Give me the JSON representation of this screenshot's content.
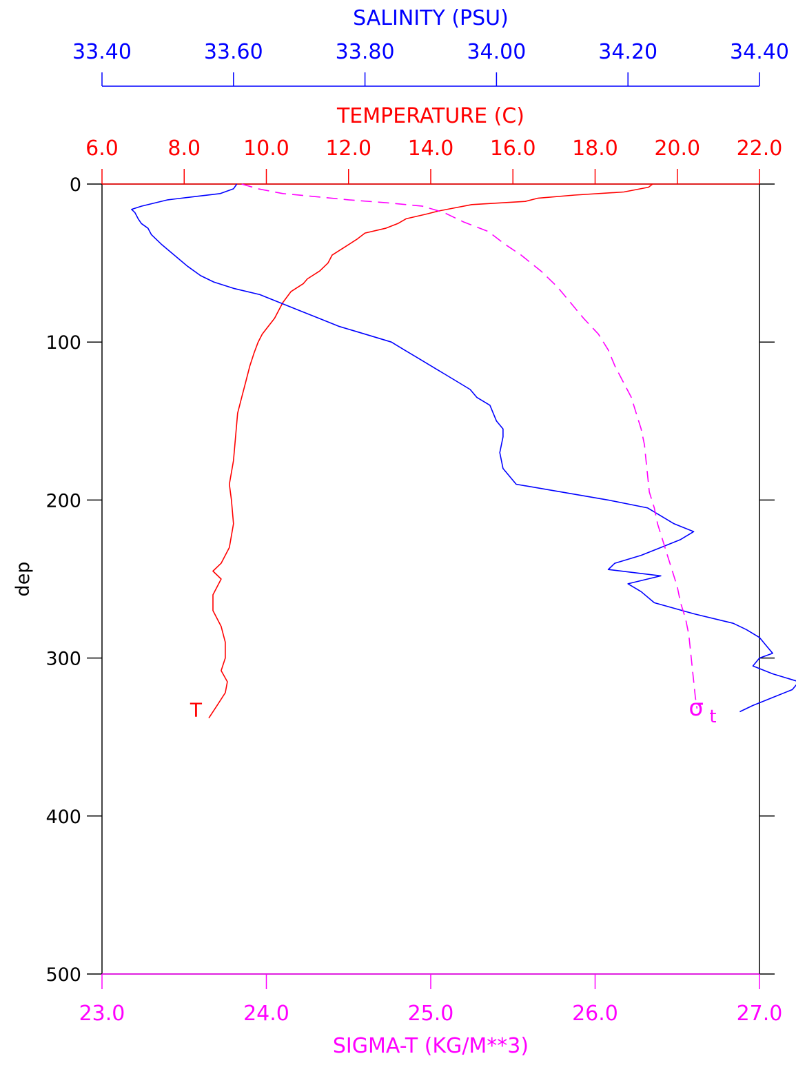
{
  "chart_data": {
    "type": "line",
    "colors": {
      "salinity": "#0000ff",
      "temperature": "#ff0000",
      "sigma_t": "#ff00ff",
      "frame": "#000000"
    },
    "y_axis": {
      "label": "dep",
      "range": [
        0,
        500
      ],
      "ticks": [
        "0",
        "100",
        "200",
        "300",
        "400",
        "500"
      ],
      "inverted": true
    },
    "salinity_axis": {
      "title": "SALINITY (PSU)",
      "range": [
        33.4,
        34.4
      ],
      "ticks": [
        "33.40",
        "33.60",
        "33.80",
        "34.00",
        "34.20",
        "34.40"
      ],
      "placement": "top"
    },
    "temperature_axis": {
      "title": "TEMPERATURE (C)",
      "range": [
        6,
        22
      ],
      "ticks": [
        "6.0",
        "8.0",
        "10.0",
        "12.0",
        "14.0",
        "16.0",
        "18.0",
        "20.0",
        "22.0"
      ],
      "placement": "top"
    },
    "sigma_axis": {
      "title": "SIGMA-T (KG/M**3)",
      "range": [
        23,
        27
      ],
      "ticks": [
        "23.0",
        "24.0",
        "25.0",
        "26.0",
        "27.0"
      ],
      "placement": "bottom"
    },
    "curve_labels": {
      "temperature": "T",
      "sigma_main": "σ",
      "sigma_sub": "t"
    },
    "series": [
      {
        "key": "temperature",
        "style": "solid",
        "points": [
          [
            0,
            19.4
          ],
          [
            2,
            19.3
          ],
          [
            5,
            18.7
          ],
          [
            7,
            17.5
          ],
          [
            9,
            16.6
          ],
          [
            11,
            16.3
          ],
          [
            13,
            15.0
          ],
          [
            15,
            14.6
          ],
          [
            17,
            14.2
          ],
          [
            19,
            13.9
          ],
          [
            22,
            13.4
          ],
          [
            25,
            13.2
          ],
          [
            28,
            12.9
          ],
          [
            31,
            12.4
          ],
          [
            35,
            12.2
          ],
          [
            40,
            11.9
          ],
          [
            45,
            11.6
          ],
          [
            50,
            11.5
          ],
          [
            55,
            11.3
          ],
          [
            60,
            11.0
          ],
          [
            63,
            10.9
          ],
          [
            68,
            10.6
          ],
          [
            75,
            10.4
          ],
          [
            85,
            10.2
          ],
          [
            95,
            9.9
          ],
          [
            100,
            9.8
          ],
          [
            107,
            9.7
          ],
          [
            115,
            9.6
          ],
          [
            125,
            9.5
          ],
          [
            135,
            9.4
          ],
          [
            145,
            9.3
          ],
          [
            160,
            9.25
          ],
          [
            175,
            9.2
          ],
          [
            190,
            9.1
          ],
          [
            200,
            9.15
          ],
          [
            215,
            9.2
          ],
          [
            230,
            9.1
          ],
          [
            240,
            8.9
          ],
          [
            245,
            8.7
          ],
          [
            250,
            8.9
          ],
          [
            260,
            8.7
          ],
          [
            270,
            8.7
          ],
          [
            280,
            8.9
          ],
          [
            290,
            9.0
          ],
          [
            300,
            9.0
          ],
          [
            308,
            8.9
          ],
          [
            315,
            9.05
          ],
          [
            322,
            9.0
          ],
          [
            330,
            8.8
          ],
          [
            338,
            8.6
          ]
        ]
      },
      {
        "key": "salinity",
        "style": "solid",
        "points": [
          [
            0,
            33.605
          ],
          [
            3,
            33.6
          ],
          [
            6,
            33.58
          ],
          [
            8,
            33.54
          ],
          [
            10,
            33.5
          ],
          [
            12,
            33.48
          ],
          [
            14,
            33.46
          ],
          [
            16,
            33.445
          ],
          [
            18,
            33.45
          ],
          [
            22,
            33.455
          ],
          [
            25,
            33.46
          ],
          [
            28,
            33.47
          ],
          [
            32,
            33.475
          ],
          [
            38,
            33.49
          ],
          [
            45,
            33.51
          ],
          [
            52,
            33.53
          ],
          [
            58,
            33.55
          ],
          [
            62,
            33.57
          ],
          [
            66,
            33.6
          ],
          [
            70,
            33.64
          ],
          [
            75,
            33.67
          ],
          [
            80,
            33.7
          ],
          [
            85,
            33.73
          ],
          [
            90,
            33.76
          ],
          [
            95,
            33.8
          ],
          [
            100,
            33.84
          ],
          [
            105,
            33.86
          ],
          [
            110,
            33.88
          ],
          [
            115,
            33.9
          ],
          [
            120,
            33.92
          ],
          [
            125,
            33.94
          ],
          [
            130,
            33.96
          ],
          [
            135,
            33.97
          ],
          [
            140,
            33.99
          ],
          [
            150,
            34.0
          ],
          [
            155,
            34.01
          ],
          [
            160,
            34.01
          ],
          [
            170,
            34.005
          ],
          [
            180,
            34.01
          ],
          [
            190,
            34.03
          ],
          [
            195,
            34.1
          ],
          [
            200,
            34.17
          ],
          [
            205,
            34.23
          ],
          [
            215,
            34.27
          ],
          [
            220,
            34.3
          ],
          [
            225,
            34.28
          ],
          [
            230,
            34.25
          ],
          [
            235,
            34.22
          ],
          [
            240,
            34.18
          ],
          [
            244,
            34.17
          ],
          [
            248,
            34.25
          ],
          [
            253,
            34.2
          ],
          [
            258,
            34.22
          ],
          [
            265,
            34.24
          ],
          [
            272,
            34.3
          ],
          [
            278,
            34.36
          ],
          [
            282,
            34.38
          ],
          [
            287,
            34.4
          ],
          [
            292,
            34.41
          ],
          [
            297,
            34.42
          ],
          [
            300,
            34.4
          ],
          [
            305,
            34.39
          ],
          [
            310,
            34.42
          ],
          [
            315,
            34.46
          ],
          [
            320,
            34.45
          ],
          [
            325,
            34.42
          ],
          [
            330,
            34.39
          ],
          [
            334,
            34.37
          ]
        ]
      },
      {
        "key": "sigma_t",
        "style": "dashed",
        "points": [
          [
            0,
            23.85
          ],
          [
            3,
            23.95
          ],
          [
            6,
            24.1
          ],
          [
            8,
            24.3
          ],
          [
            10,
            24.5
          ],
          [
            12,
            24.75
          ],
          [
            14,
            24.95
          ],
          [
            18,
            25.08
          ],
          [
            24,
            25.2
          ],
          [
            30,
            25.35
          ],
          [
            38,
            25.45
          ],
          [
            45,
            25.55
          ],
          [
            55,
            25.67
          ],
          [
            65,
            25.77
          ],
          [
            75,
            25.85
          ],
          [
            85,
            25.93
          ],
          [
            95,
            26.02
          ],
          [
            105,
            26.08
          ],
          [
            115,
            26.12
          ],
          [
            125,
            26.17
          ],
          [
            135,
            26.22
          ],
          [
            145,
            26.25
          ],
          [
            155,
            26.28
          ],
          [
            165,
            26.3
          ],
          [
            175,
            26.31
          ],
          [
            185,
            26.32
          ],
          [
            195,
            26.33
          ],
          [
            205,
            26.36
          ],
          [
            215,
            26.38
          ],
          [
            225,
            26.41
          ],
          [
            235,
            26.44
          ],
          [
            245,
            26.47
          ],
          [
            255,
            26.5
          ],
          [
            265,
            26.52
          ],
          [
            275,
            26.55
          ],
          [
            285,
            26.57
          ],
          [
            295,
            26.58
          ],
          [
            305,
            26.59
          ],
          [
            315,
            26.6
          ],
          [
            325,
            26.61
          ],
          [
            332,
            26.62
          ]
        ]
      }
    ]
  }
}
